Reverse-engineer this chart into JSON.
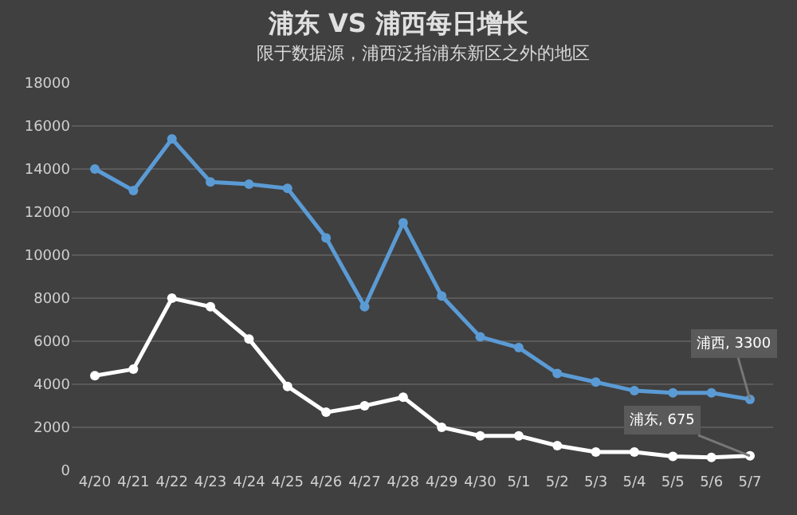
{
  "chart_data": {
    "type": "line",
    "title": "浦东 VS 浦西每日增长",
    "subtitle": "限于数据源，浦西泛指浦东新区之外的地区",
    "categories": [
      "4/20",
      "4/21",
      "4/22",
      "4/23",
      "4/24",
      "4/25",
      "4/26",
      "4/27",
      "4/28",
      "4/29",
      "4/30",
      "5/1",
      "5/2",
      "5/3",
      "5/4",
      "5/5",
      "5/6",
      "5/7"
    ],
    "series": [
      {
        "color": "#5b9bd5",
        "values": [
          14000,
          13000,
          15400,
          13400,
          13300,
          13100,
          10800,
          7600,
          11500,
          8100,
          6200,
          5700,
          4500,
          4100,
          3700,
          3600,
          3600,
          3300
        ]
      },
      {
        "color": "#ffffff",
        "values": [
          4400,
          4700,
          8000,
          7600,
          6100,
          3900,
          2700,
          3000,
          3400,
          2000,
          1600,
          1600,
          1150,
          850,
          850,
          650,
          600,
          675
        ]
      }
    ],
    "annotations": [
      {
        "text": "浦西, 3300",
        "x": "5/7",
        "y": 3300
      },
      {
        "text": "浦东, 675",
        "x": "5/7",
        "y": 675
      }
    ],
    "ylim": [
      0,
      18000
    ],
    "yticks": [
      0,
      2000,
      4000,
      6000,
      8000,
      10000,
      12000,
      14000,
      16000,
      18000
    ],
    "grid": "y",
    "legend": false,
    "marker": "circle",
    "line_style": "solid"
  }
}
